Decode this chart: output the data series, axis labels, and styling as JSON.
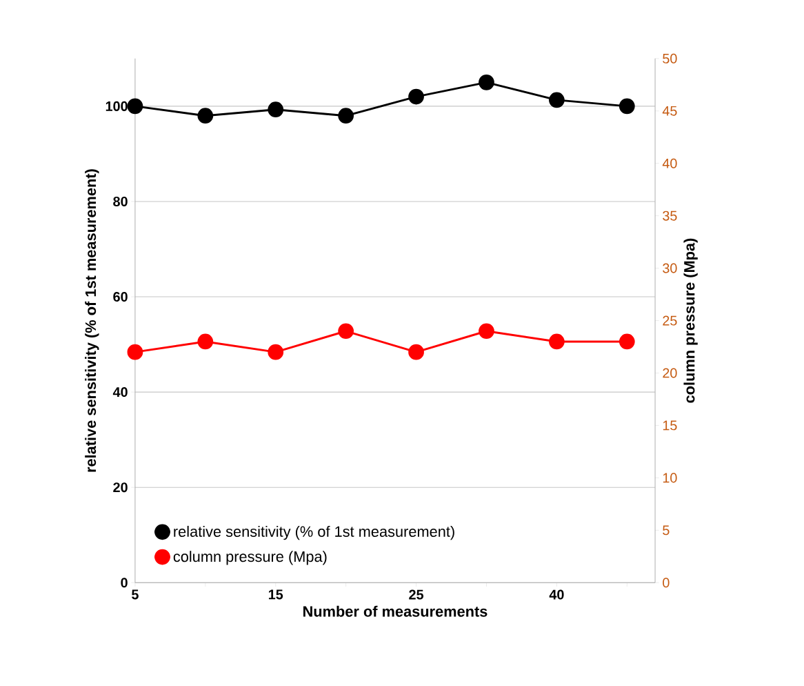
{
  "chart_data": {
    "type": "line",
    "xlabel": "Number of measurements",
    "ylabel": "relative sensitivity (% of 1st measurement)",
    "y2label": "column pressure (Mpa)",
    "categories": [
      "5",
      null,
      "15",
      null,
      "25",
      null,
      "40",
      null
    ],
    "series": [
      {
        "name": "relative sensitivity (% of 1st measurement)",
        "color": "#000000",
        "values": [
          100,
          98,
          99.3,
          98,
          102,
          105,
          101.3,
          100
        ]
      },
      {
        "name": "column pressure (Mpa)",
        "color": "#ff0000",
        "axis": "y2",
        "values": [
          22,
          23,
          22,
          24,
          22,
          24,
          23,
          23
        ]
      }
    ],
    "ylim": [
      0,
      110
    ],
    "yticks": [
      0,
      20,
      40,
      60,
      80,
      100
    ],
    "y2lim": [
      0,
      50
    ],
    "y2ticks": [
      0,
      5,
      10,
      15,
      20,
      25,
      30,
      35,
      40,
      45,
      50
    ],
    "grid": "y",
    "legend": "bottom left",
    "marker": "circle",
    "line_style": "solid"
  }
}
